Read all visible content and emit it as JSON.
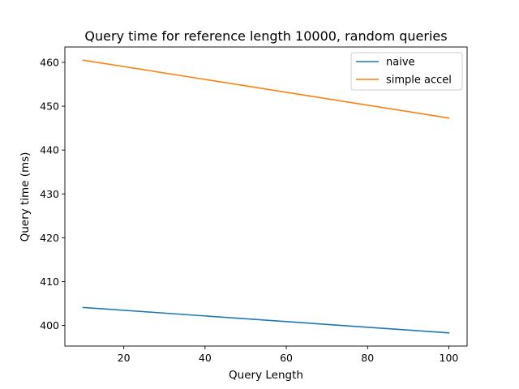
{
  "chart_data": {
    "type": "line",
    "title": "Query time for reference length 10000, random queries",
    "xlabel": "Query Length",
    "ylabel": "Query time (ms)",
    "xlim": [
      5.5,
      104.5
    ],
    "ylim": [
      395.3,
      463.5
    ],
    "xticks": [
      20,
      40,
      60,
      80,
      100
    ],
    "yticks": [
      400,
      410,
      420,
      430,
      440,
      450,
      460
    ],
    "grid": false,
    "legend_position": "upper right",
    "series": [
      {
        "name": "naive",
        "color": "#1f77b4",
        "x": [
          10,
          100
        ],
        "y": [
          404.1,
          398.3
        ]
      },
      {
        "name": "simple accel",
        "color": "#ff7f0e",
        "x": [
          10,
          100
        ],
        "y": [
          460.5,
          447.3
        ]
      }
    ]
  }
}
